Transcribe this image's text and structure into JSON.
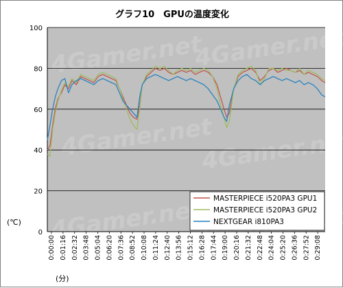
{
  "chart_data": {
    "type": "line",
    "title": "グラフ10　GPUの温度変化",
    "ylabel": "(℃)",
    "xlabel": "(分)",
    "ylim": [
      0,
      100
    ],
    "yticks": [
      0,
      20,
      40,
      60,
      80,
      100
    ],
    "xlim_minutes": [
      0,
      31.6
    ],
    "x_ticks": [
      "0:00:00",
      "0:01:16",
      "0:02:32",
      "0:03:48",
      "0:05:04",
      "0:06:20",
      "0:07:36",
      "0:08:52",
      "0:10:08",
      "0:11:24",
      "0:12:40",
      "0:13:56",
      "0:15:12",
      "0:16:28",
      "0:17:44",
      "0:19:00",
      "0:20:16",
      "0:21:32",
      "0:22:48",
      "0:24:04",
      "0:25:20",
      "0:26:36",
      "0:27:52",
      "0:29:08"
    ],
    "grid": true,
    "legend_position": "bottom-right",
    "watermark": "4Gamer.net",
    "series": [
      {
        "name": "MASTERPIECE i520PA3 GPU1",
        "color": "#c0504d",
        "x": [
          0,
          0.3,
          0.6,
          0.9,
          1.2,
          1.6,
          2.0,
          2.4,
          2.8,
          3.3,
          3.8,
          4.3,
          4.8,
          5.3,
          5.8,
          6.3,
          6.8,
          7.3,
          7.8,
          8.2,
          8.6,
          9.0,
          9.4,
          9.8,
          10.2,
          10.5,
          10.8,
          11.3,
          11.8,
          12.3,
          12.8,
          13.3,
          13.8,
          14.3,
          14.8,
          15.3,
          15.8,
          16.3,
          16.8,
          17.3,
          17.8,
          18.3,
          18.8,
          19.3,
          19.7,
          20.1,
          20.4,
          20.7,
          21.2,
          21.7,
          22.2,
          22.7,
          23.2,
          23.7,
          24.2,
          24.7,
          25.2,
          25.7,
          26.2,
          26.7,
          27.2,
          27.7,
          28.2,
          28.7,
          29.2,
          29.7,
          30.2,
          30.7,
          31.2,
          31.6
        ],
        "y": [
          40,
          42,
          52,
          60,
          65,
          68,
          72,
          70,
          74,
          72,
          76,
          75,
          74,
          73,
          76,
          77,
          76,
          75,
          74,
          70,
          66,
          62,
          58,
          56,
          55,
          62,
          72,
          76,
          78,
          80,
          79,
          80,
          78,
          77,
          78,
          79,
          78,
          79,
          77,
          78,
          79,
          78,
          76,
          72,
          66,
          60,
          56,
          58,
          70,
          76,
          78,
          79,
          80,
          78,
          74,
          76,
          79,
          80,
          78,
          79,
          80,
          79,
          78,
          79,
          77,
          78,
          77,
          76,
          74,
          73
        ]
      },
      {
        "name": "MASTERPIECE i520PA3 GPU2",
        "color": "#9bbb59",
        "x": [
          0,
          0.3,
          0.6,
          0.9,
          1.2,
          1.6,
          2.0,
          2.4,
          2.8,
          3.3,
          3.8,
          4.3,
          4.8,
          5.3,
          5.8,
          6.3,
          6.8,
          7.3,
          7.8,
          8.2,
          8.6,
          9.0,
          9.4,
          9.8,
          10.2,
          10.5,
          10.8,
          11.3,
          11.8,
          12.3,
          12.8,
          13.3,
          13.8,
          14.3,
          14.8,
          15.3,
          15.8,
          16.3,
          16.8,
          17.3,
          17.8,
          18.3,
          18.8,
          19.3,
          19.7,
          20.1,
          20.4,
          20.7,
          21.2,
          21.7,
          22.2,
          22.7,
          23.2,
          23.7,
          24.2,
          24.7,
          25.2,
          25.7,
          26.2,
          26.7,
          27.2,
          27.7,
          28.2,
          28.7,
          29.2,
          29.7,
          30.2,
          30.7,
          31.2,
          31.6
        ],
        "y": [
          38,
          37,
          50,
          58,
          64,
          69,
          73,
          71,
          75,
          73,
          77,
          76,
          75,
          74,
          77,
          78,
          77,
          76,
          75,
          70,
          65,
          60,
          55,
          52,
          50,
          60,
          72,
          77,
          79,
          81,
          80,
          81,
          79,
          77,
          79,
          80,
          79,
          80,
          78,
          79,
          80,
          79,
          76,
          70,
          62,
          56,
          51,
          54,
          70,
          77,
          79,
          80,
          81,
          79,
          72,
          75,
          80,
          80,
          79,
          80,
          79,
          79,
          78,
          80,
          77,
          79,
          78,
          77,
          75,
          74
        ]
      },
      {
        "name": "NEXTGEAR i810PA3",
        "color": "#1f7fc0",
        "x": [
          0,
          0.3,
          0.6,
          0.9,
          1.2,
          1.6,
          2.0,
          2.4,
          2.8,
          3.3,
          3.8,
          4.3,
          4.8,
          5.3,
          5.8,
          6.3,
          6.8,
          7.3,
          7.8,
          8.2,
          8.6,
          9.0,
          9.4,
          9.8,
          10.2,
          10.5,
          10.8,
          11.3,
          11.8,
          12.3,
          12.8,
          13.3,
          13.8,
          14.3,
          14.8,
          15.3,
          15.8,
          16.3,
          16.8,
          17.3,
          17.8,
          18.3,
          18.8,
          19.3,
          19.7,
          20.1,
          20.4,
          20.7,
          21.2,
          21.7,
          22.2,
          22.7,
          23.2,
          23.7,
          24.2,
          24.7,
          25.2,
          25.7,
          26.2,
          26.7,
          27.2,
          27.7,
          28.2,
          28.7,
          29.2,
          29.7,
          30.2,
          30.7,
          31.2,
          31.6
        ],
        "y": [
          45,
          52,
          60,
          66,
          70,
          74,
          75,
          68,
          72,
          74,
          75,
          74,
          73,
          72,
          74,
          75,
          74,
          73,
          72,
          68,
          64,
          62,
          60,
          58,
          56,
          66,
          72,
          75,
          76,
          77,
          76,
          75,
          74,
          75,
          76,
          75,
          74,
          75,
          74,
          73,
          72,
          70,
          67,
          64,
          60,
          56,
          54,
          62,
          70,
          74,
          76,
          77,
          75,
          74,
          72,
          74,
          75,
          76,
          75,
          74,
          75,
          74,
          73,
          74,
          72,
          73,
          72,
          70,
          67,
          66
        ]
      }
    ]
  }
}
